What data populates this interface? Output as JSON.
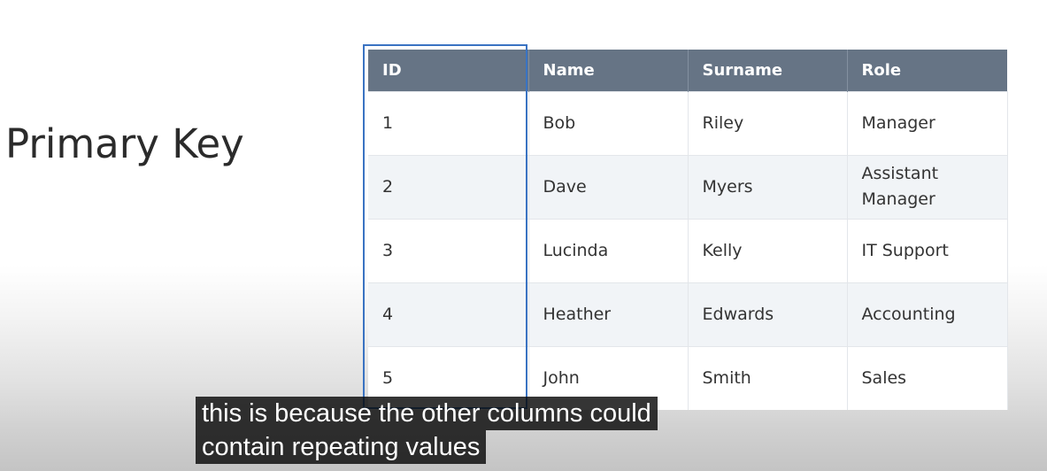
{
  "slide": {
    "title": "Primary Key"
  },
  "table": {
    "headers": [
      "ID",
      "Name",
      "Surname",
      "Role"
    ],
    "rows": [
      [
        "1",
        "Bob",
        "Riley",
        "Manager"
      ],
      [
        "2",
        "Dave",
        "Myers",
        "Assistant Manager"
      ],
      [
        "3",
        "Lucinda",
        "Kelly",
        "IT Support"
      ],
      [
        "4",
        "Heather",
        "Edwards",
        "Accounting"
      ],
      [
        "5",
        "John",
        "Smith",
        "Sales"
      ]
    ]
  },
  "caption": {
    "line1": "this is because the other columns could",
    "line2": "contain repeating values"
  },
  "colors": {
    "header_bg": "#667485",
    "highlight_border": "#3a73c2",
    "alt_row_bg": "#f1f4f7"
  }
}
